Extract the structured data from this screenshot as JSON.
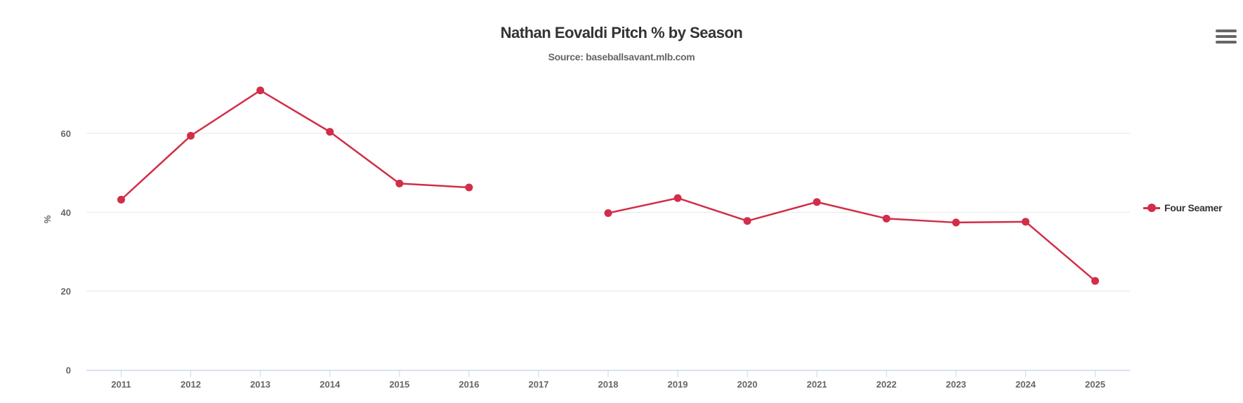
{
  "chart_data": {
    "type": "line",
    "title": "Nathan Eovaldi Pitch % by Season",
    "subtitle": "Source: baseballsavant.mlb.com",
    "xlabel": "",
    "ylabel": "%",
    "categories": [
      "2011",
      "2012",
      "2013",
      "2014",
      "2015",
      "2016",
      "2017",
      "2018",
      "2019",
      "2020",
      "2021",
      "2022",
      "2023",
      "2024",
      "2025"
    ],
    "yticks": [
      0,
      20,
      40,
      60
    ],
    "ylim": [
      0,
      80
    ],
    "grid": true,
    "legend_position": "right",
    "series": [
      {
        "name": "Four Seamer",
        "color": "#d22d49",
        "values": [
          43.2,
          59.4,
          70.9,
          60.4,
          47.3,
          46.3,
          null,
          39.8,
          43.6,
          37.8,
          42.6,
          38.4,
          37.4,
          37.6,
          22.6
        ]
      }
    ]
  },
  "menu_icon": "hamburger-menu-icon"
}
